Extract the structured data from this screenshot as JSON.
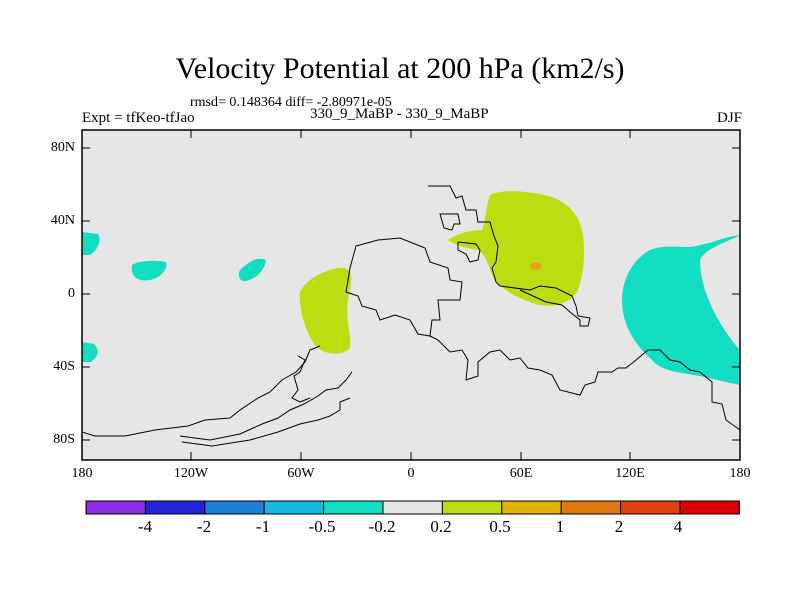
{
  "title": "Velocity Potential at 200 hPa (km2/s)",
  "stats": "rmsd= 0.148364 diff= -2.80971e-05",
  "expt": "Expt = tfKeo-tfJao",
  "case_pair": "330_9_MaBP - 330_9_MaBP",
  "season": "DJF",
  "lat_labels": [
    "80N",
    "40N",
    "0",
    "40S",
    "80S"
  ],
  "lon_labels": [
    "180",
    "120W",
    "60W",
    "0",
    "60E",
    "120E",
    "180"
  ],
  "colorbar": {
    "colors": [
      "#8a2be2",
      "#2222dd",
      "#1e7fd9",
      "#17b8e0",
      "#11ddc1",
      "#e6e6e6",
      "#bbdd11",
      "#e0b400",
      "#e07a10",
      "#e04010",
      "#dd0000"
    ],
    "labels": [
      "-4",
      "-2",
      "-1",
      "-0.5",
      "-0.2",
      "0.2",
      "0.5",
      "1",
      "2",
      "4"
    ]
  },
  "colors": {
    "background": "#e6e6e6",
    "positive_weak": "#bbdd11",
    "positive_mid": "#e0a020",
    "negative_weak": "#11ddc1"
  }
}
